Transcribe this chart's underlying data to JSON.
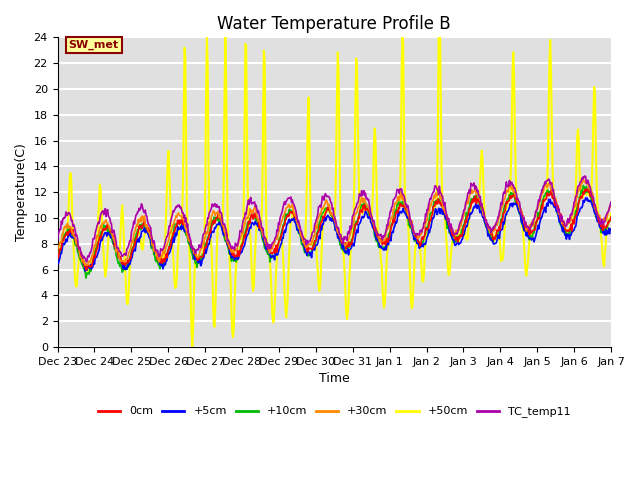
{
  "title": "Water Temperature Profile B",
  "xlabel": "Time",
  "ylabel": "Temperature(C)",
  "ylim": [
    0,
    24
  ],
  "yticks": [
    0,
    2,
    4,
    6,
    8,
    10,
    12,
    14,
    16,
    18,
    20,
    22,
    24
  ],
  "xtick_labels": [
    "Dec 23",
    "Dec 24",
    "Dec 25",
    "Dec 26",
    "Dec 27",
    "Dec 28",
    "Dec 29",
    "Dec 30",
    "Dec 31",
    "Jan 1",
    "Jan 2",
    "Jan 3",
    "Jan 4",
    "Jan 5",
    "Jan 6",
    "Jan 7"
  ],
  "annotation_text": "SW_met",
  "annotation_color": "#8B0000",
  "annotation_bg": "#FFFF99",
  "annotation_border": "#8B0000",
  "series": {
    "0cm": {
      "color": "#FF0000",
      "lw": 1.2,
      "zorder": 5
    },
    "+5cm": {
      "color": "#0000FF",
      "lw": 1.2,
      "zorder": 4
    },
    "+10cm": {
      "color": "#00BB00",
      "lw": 1.2,
      "zorder": 3
    },
    "+30cm": {
      "color": "#FF8800",
      "lw": 1.2,
      "zorder": 6
    },
    "+50cm": {
      "color": "#FFFF00",
      "lw": 1.5,
      "zorder": 2
    },
    "TC_temp11": {
      "color": "#AA00AA",
      "lw": 1.2,
      "zorder": 7
    }
  },
  "bg_color": "#E0E0E0",
  "grid_color": "#FFFFFF",
  "title_fontsize": 12,
  "axis_fontsize": 9,
  "tick_fontsize": 8
}
